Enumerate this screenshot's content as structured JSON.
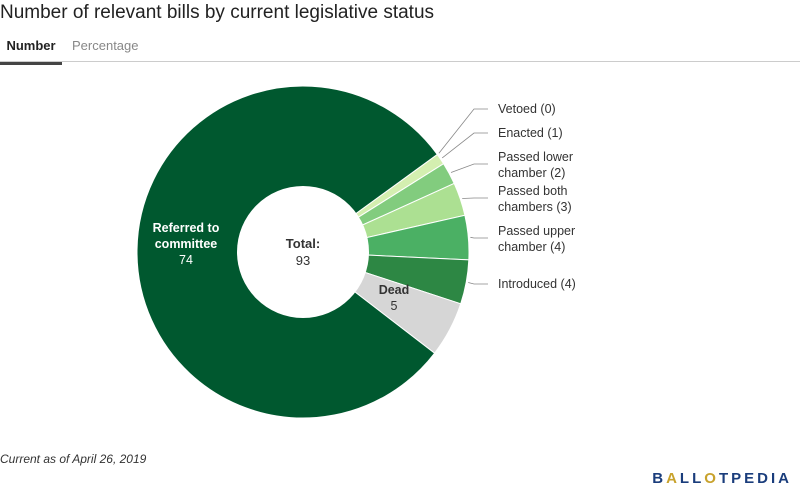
{
  "title": "Number of relevant bills by current legislative status",
  "tabs": [
    {
      "label": "Number",
      "active": true
    },
    {
      "label": "Percentage",
      "active": false
    }
  ],
  "footnote": "Current as of April 26, 2019",
  "logo": {
    "text": "BALLOTPEDIA",
    "color": "#1a3d7c",
    "accent_color": "#c8a22c"
  },
  "chart_data": {
    "type": "pie",
    "variant": "donut",
    "center_label": {
      "title": "Total:",
      "value": "93"
    },
    "total": 93,
    "start_angle_deg": 54,
    "direction": "clockwise",
    "slices": [
      {
        "label": "Vetoed",
        "value": 0,
        "display": "Vetoed (0)",
        "color": "#e7f5d0",
        "label_position": "outside"
      },
      {
        "label": "Enacted",
        "value": 1,
        "display": "Enacted (1)",
        "color": "#d4efb0",
        "label_position": "outside"
      },
      {
        "label": "Passed lower chamber",
        "value": 2,
        "display_lines": [
          "Passed lower",
          "chamber (2)"
        ],
        "color": "#82cc7e",
        "label_position": "outside"
      },
      {
        "label": "Passed both chambers",
        "value": 3,
        "display_lines": [
          "Passed both",
          "chambers (3)"
        ],
        "color": "#ace092",
        "label_position": "outside"
      },
      {
        "label": "Passed upper chamber",
        "value": 4,
        "display_lines": [
          "Passed upper",
          "chamber (4)"
        ],
        "color": "#4bb064",
        "label_position": "outside"
      },
      {
        "label": "Introduced",
        "value": 4,
        "display": "Introduced (4)",
        "color": "#2d8744",
        "label_position": "outside"
      },
      {
        "label": "Dead",
        "value": 5,
        "display_lines": [
          "Dead"
        ],
        "value_text": "5",
        "color": "#d6d6d6",
        "label_position": "inside",
        "text_color": "#333333"
      },
      {
        "label": "Referred to committee",
        "value": 74,
        "display_lines": [
          "Referred to",
          "committee"
        ],
        "value_text": "74",
        "color": "#00582f",
        "label_position": "inside",
        "text_color": "#ffffff"
      }
    ]
  }
}
